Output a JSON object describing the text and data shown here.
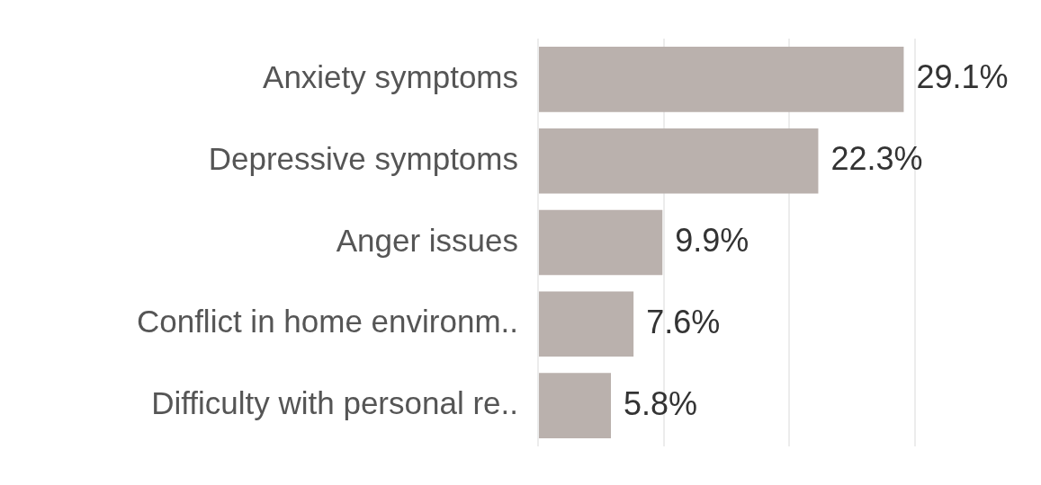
{
  "chart_data": {
    "type": "bar",
    "orientation": "horizontal",
    "relative": false,
    "categories": [
      "Anxiety symptoms",
      "Depressive symptoms",
      "Anger issues",
      "Conflict in home environm..",
      "Difficulty with personal re.."
    ],
    "values": [
      29.1,
      22.3,
      9.9,
      7.6,
      5.8
    ],
    "value_labels": [
      "29.1%",
      "22.3%",
      "9.9%",
      "7.6%",
      "5.8%"
    ],
    "color": "#bab1ad",
    "xlim": [
      0,
      30
    ],
    "xticks": [
      {
        "value": 0,
        "label": null
      },
      {
        "value": 10,
        "label": null
      },
      {
        "value": 20,
        "label": null
      },
      {
        "value": 30,
        "label": null
      }
    ],
    "grid": "x",
    "tick_labels": "y"
  }
}
